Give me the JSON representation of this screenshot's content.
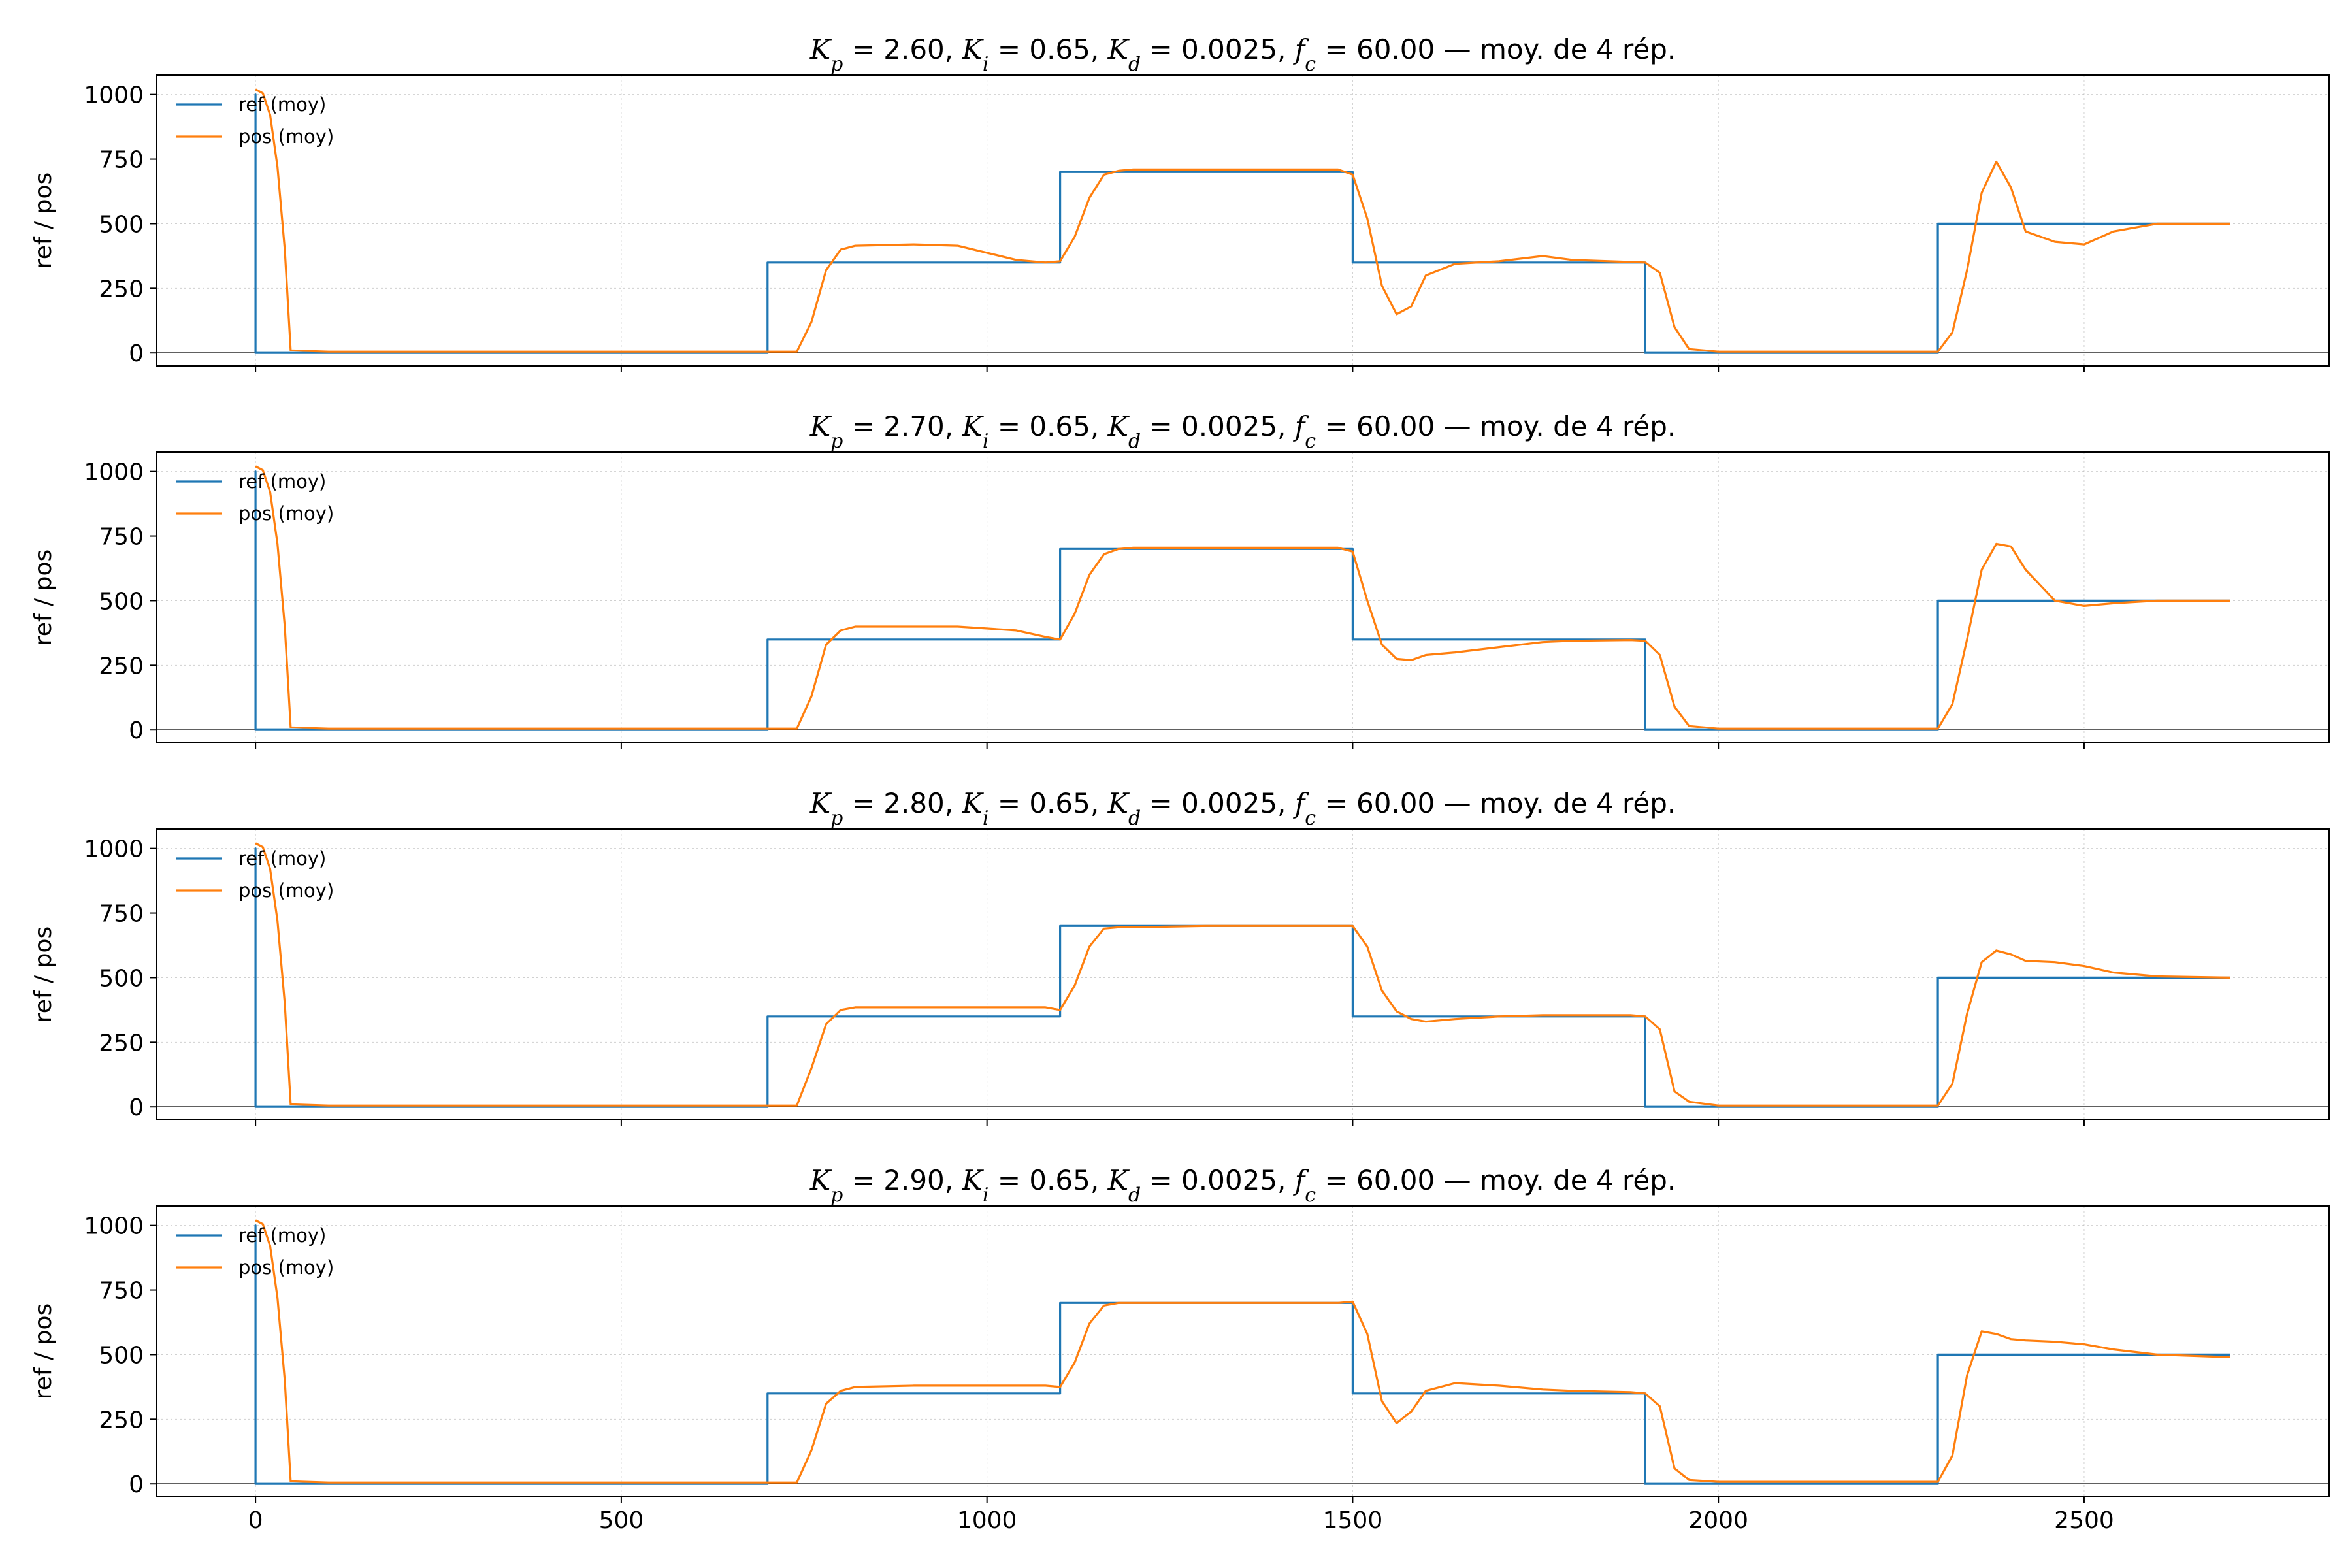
{
  "colors": {
    "ref": "#1f77b4",
    "pos": "#ff7f0e",
    "axis": "#000000",
    "grid": "#b0b0b0",
    "zero_line": "#000000"
  },
  "chart_data": [
    {
      "type": "line",
      "title_parts": {
        "kp": "2.60",
        "ki": "0.65",
        "kd": "0.0025",
        "fc": "60.00",
        "suffix": "— moy. de 4 rép."
      },
      "ylabel": "ref / pos",
      "xlim": [
        -135,
        2835
      ],
      "ylim": [
        -50,
        1075
      ],
      "xticks": [
        0,
        500,
        1000,
        1500,
        2000,
        2500
      ],
      "yticks": [
        0,
        250,
        500,
        750,
        1000
      ],
      "grid": true,
      "legend_position": "upper-left",
      "series": [
        {
          "name": "ref (moy)",
          "key": "ref",
          "x": [
            0,
            0,
            0,
            700,
            700,
            1100,
            1100,
            1500,
            1500,
            1900,
            1900,
            2300,
            2300,
            2700
          ],
          "y": [
            0,
            1000,
            0,
            0,
            350,
            350,
            700,
            700,
            350,
            350,
            0,
            0,
            500,
            500
          ]
        },
        {
          "name": "pos (moy)",
          "key": "pos",
          "x": [
            0,
            10,
            20,
            30,
            40,
            48,
            100,
            300,
            500,
            700,
            740,
            760,
            780,
            800,
            820,
            900,
            960,
            1040,
            1080,
            1100,
            1120,
            1140,
            1160,
            1180,
            1200,
            1300,
            1400,
            1480,
            1500,
            1520,
            1540,
            1560,
            1580,
            1600,
            1640,
            1700,
            1760,
            1800,
            1880,
            1900,
            1920,
            1940,
            1960,
            2000,
            2100,
            2200,
            2280,
            2300,
            2320,
            2340,
            2360,
            2380,
            2400,
            2420,
            2460,
            2500,
            2540,
            2600,
            2700
          ],
          "y": [
            1020,
            1005,
            920,
            720,
            400,
            10,
            5,
            5,
            5,
            5,
            5,
            120,
            320,
            400,
            415,
            420,
            415,
            360,
            350,
            355,
            450,
            600,
            690,
            705,
            710,
            710,
            710,
            710,
            690,
            520,
            260,
            150,
            180,
            300,
            345,
            355,
            375,
            360,
            352,
            350,
            310,
            100,
            15,
            5,
            5,
            5,
            5,
            5,
            80,
            320,
            620,
            740,
            640,
            470,
            430,
            420,
            470,
            500,
            500
          ]
        }
      ]
    },
    {
      "type": "line",
      "title_parts": {
        "kp": "2.70",
        "ki": "0.65",
        "kd": "0.0025",
        "fc": "60.00",
        "suffix": "— moy. de 4 rép."
      },
      "ylabel": "ref / pos",
      "xlim": [
        -135,
        2835
      ],
      "ylim": [
        -50,
        1075
      ],
      "xticks": [
        0,
        500,
        1000,
        1500,
        2000,
        2500
      ],
      "yticks": [
        0,
        250,
        500,
        750,
        1000
      ],
      "grid": true,
      "legend_position": "upper-left",
      "series": [
        {
          "name": "ref (moy)",
          "key": "ref",
          "x": [
            0,
            0,
            0,
            700,
            700,
            1100,
            1100,
            1500,
            1500,
            1900,
            1900,
            2300,
            2300,
            2700
          ],
          "y": [
            0,
            1000,
            0,
            0,
            350,
            350,
            700,
            700,
            350,
            350,
            0,
            0,
            500,
            500
          ]
        },
        {
          "name": "pos (moy)",
          "key": "pos",
          "x": [
            0,
            10,
            20,
            30,
            40,
            48,
            100,
            300,
            500,
            700,
            740,
            760,
            780,
            800,
            820,
            900,
            960,
            1040,
            1080,
            1100,
            1120,
            1140,
            1160,
            1180,
            1200,
            1300,
            1400,
            1480,
            1500,
            1520,
            1540,
            1560,
            1580,
            1600,
            1640,
            1700,
            1760,
            1800,
            1880,
            1900,
            1920,
            1940,
            1960,
            2000,
            2100,
            2200,
            2280,
            2300,
            2320,
            2340,
            2360,
            2380,
            2400,
            2420,
            2460,
            2500,
            2540,
            2600,
            2700
          ],
          "y": [
            1020,
            1005,
            920,
            720,
            400,
            10,
            5,
            5,
            5,
            5,
            5,
            130,
            330,
            385,
            400,
            400,
            400,
            385,
            360,
            350,
            450,
            600,
            680,
            700,
            705,
            705,
            705,
            705,
            690,
            500,
            330,
            275,
            270,
            290,
            300,
            320,
            340,
            345,
            348,
            345,
            290,
            90,
            15,
            5,
            5,
            5,
            5,
            5,
            100,
            350,
            620,
            720,
            710,
            620,
            500,
            480,
            490,
            500,
            500
          ]
        }
      ]
    },
    {
      "type": "line",
      "title_parts": {
        "kp": "2.80",
        "ki": "0.65",
        "kd": "0.0025",
        "fc": "60.00",
        "suffix": "— moy. de 4 rép."
      },
      "ylabel": "ref / pos",
      "xlim": [
        -135,
        2835
      ],
      "ylim": [
        -50,
        1075
      ],
      "xticks": [
        0,
        500,
        1000,
        1500,
        2000,
        2500
      ],
      "yticks": [
        0,
        250,
        500,
        750,
        1000
      ],
      "grid": true,
      "legend_position": "upper-left",
      "series": [
        {
          "name": "ref (moy)",
          "key": "ref",
          "x": [
            0,
            0,
            0,
            700,
            700,
            1100,
            1100,
            1500,
            1500,
            1900,
            1900,
            2300,
            2300,
            2700
          ],
          "y": [
            0,
            1000,
            0,
            0,
            350,
            350,
            700,
            700,
            350,
            350,
            0,
            0,
            500,
            500
          ]
        },
        {
          "name": "pos (moy)",
          "key": "pos",
          "x": [
            0,
            10,
            20,
            30,
            40,
            48,
            100,
            300,
            500,
            700,
            740,
            760,
            780,
            800,
            820,
            900,
            960,
            1040,
            1080,
            1100,
            1120,
            1140,
            1160,
            1180,
            1200,
            1300,
            1400,
            1480,
            1500,
            1520,
            1540,
            1560,
            1580,
            1600,
            1640,
            1700,
            1760,
            1800,
            1880,
            1900,
            1920,
            1940,
            1960,
            2000,
            2100,
            2200,
            2280,
            2300,
            2320,
            2340,
            2360,
            2380,
            2400,
            2420,
            2460,
            2500,
            2540,
            2600,
            2700
          ],
          "y": [
            1020,
            1005,
            920,
            720,
            400,
            10,
            5,
            5,
            5,
            5,
            5,
            150,
            320,
            375,
            385,
            385,
            385,
            385,
            385,
            375,
            470,
            620,
            690,
            695,
            695,
            700,
            700,
            700,
            700,
            620,
            450,
            370,
            340,
            330,
            340,
            350,
            355,
            355,
            355,
            350,
            300,
            60,
            20,
            5,
            5,
            5,
            5,
            5,
            90,
            360,
            560,
            605,
            590,
            565,
            560,
            545,
            520,
            505,
            500
          ]
        }
      ]
    },
    {
      "type": "line",
      "title_parts": {
        "kp": "2.90",
        "ki": "0.65",
        "kd": "0.0025",
        "fc": "60.00",
        "suffix": "— moy. de 4 rép."
      },
      "ylabel": "ref / pos",
      "xlim": [
        -135,
        2835
      ],
      "ylim": [
        -50,
        1075
      ],
      "xticks": [
        0,
        500,
        1000,
        1500,
        2000,
        2500
      ],
      "yticks": [
        0,
        250,
        500,
        750,
        1000
      ],
      "xticklabels_visible": true,
      "grid": true,
      "legend_position": "upper-left",
      "series": [
        {
          "name": "ref (moy)",
          "key": "ref",
          "x": [
            0,
            0,
            0,
            700,
            700,
            1100,
            1100,
            1500,
            1500,
            1900,
            1900,
            2300,
            2300,
            2700
          ],
          "y": [
            0,
            1000,
            0,
            0,
            350,
            350,
            700,
            700,
            350,
            350,
            0,
            0,
            500,
            500
          ]
        },
        {
          "name": "pos (moy)",
          "key": "pos",
          "x": [
            0,
            10,
            20,
            30,
            40,
            48,
            100,
            300,
            500,
            700,
            740,
            760,
            780,
            800,
            820,
            900,
            960,
            1040,
            1080,
            1100,
            1120,
            1140,
            1160,
            1180,
            1200,
            1300,
            1400,
            1480,
            1500,
            1520,
            1540,
            1560,
            1580,
            1600,
            1640,
            1700,
            1760,
            1800,
            1880,
            1900,
            1920,
            1940,
            1960,
            2000,
            2100,
            2200,
            2280,
            2300,
            2320,
            2340,
            2360,
            2380,
            2400,
            2420,
            2460,
            2500,
            2540,
            2600,
            2700
          ],
          "y": [
            1020,
            1005,
            920,
            720,
            400,
            10,
            5,
            5,
            5,
            5,
            5,
            130,
            310,
            360,
            375,
            380,
            380,
            380,
            380,
            375,
            470,
            620,
            690,
            700,
            700,
            700,
            700,
            700,
            705,
            580,
            320,
            235,
            280,
            360,
            390,
            380,
            365,
            360,
            355,
            350,
            300,
            60,
            15,
            8,
            8,
            8,
            8,
            8,
            110,
            420,
            590,
            580,
            560,
            555,
            550,
            540,
            520,
            500,
            490
          ]
        }
      ]
    }
  ]
}
